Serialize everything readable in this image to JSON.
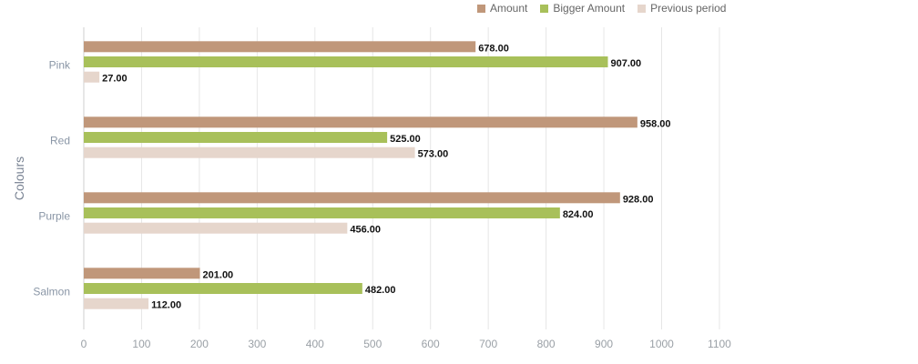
{
  "chart_data": {
    "type": "bar",
    "orientation": "horizontal",
    "categories": [
      "Pink",
      "Red",
      "Purple",
      "Salmon"
    ],
    "series": [
      {
        "name": "Amount",
        "color": "#c0977a",
        "values": [
          678,
          958,
          928,
          201
        ]
      },
      {
        "name": "Bigger Amount",
        "color": "#a8c05a",
        "values": [
          907,
          525,
          824,
          482
        ]
      },
      {
        "name": "Previous period",
        "color": "#e6d6cc",
        "values": [
          27,
          573,
          456,
          112
        ]
      }
    ],
    "value_labels": [
      [
        "678.00",
        "958.00",
        "928.00",
        "201.00"
      ],
      [
        "907.00",
        "525.00",
        "824.00",
        "482.00"
      ],
      [
        "27.00",
        "573.00",
        "456.00",
        "112.00"
      ]
    ],
    "ylabel": "Colours",
    "xlim": [
      0,
      1100
    ],
    "xticks": [
      0,
      100,
      200,
      300,
      400,
      500,
      600,
      700,
      800,
      900,
      1000,
      1100
    ],
    "xtick_labels": [
      "0",
      "100",
      "200",
      "300",
      "400",
      "500",
      "600",
      "700",
      "800",
      "900",
      "1000",
      "1100"
    ],
    "grid": true,
    "legend_position": "top"
  }
}
